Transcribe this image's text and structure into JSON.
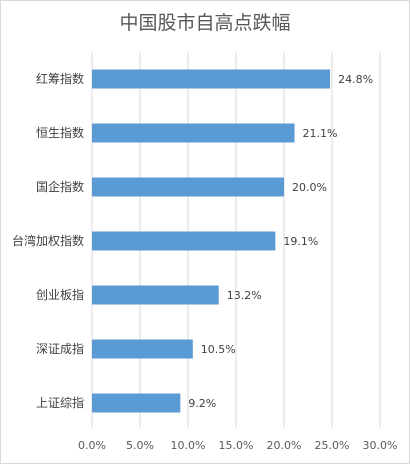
{
  "chart_data": {
    "type": "bar",
    "orientation": "horizontal",
    "title": "中国股市自高点跌幅",
    "categories": [
      "红筹指数",
      "恒生指数",
      "国企指数",
      "台湾加权指数",
      "创业板指",
      "深证成指",
      "上证综指"
    ],
    "values": [
      24.8,
      21.1,
      20.0,
      19.1,
      13.2,
      10.5,
      9.2
    ],
    "value_labels": [
      "24.8%",
      "21.1%",
      "20.0%",
      "19.1%",
      "13.2%",
      "10.5%",
      "9.2%"
    ],
    "x_ticks": [
      "0.0%",
      "5.0%",
      "10.0%",
      "15.0%",
      "20.0%",
      "25.0%",
      "30.0%"
    ],
    "xlim": [
      0,
      30
    ],
    "grid": true,
    "colors": {
      "bar": "#5b9bd5",
      "grid": "#d9d9d9"
    }
  }
}
